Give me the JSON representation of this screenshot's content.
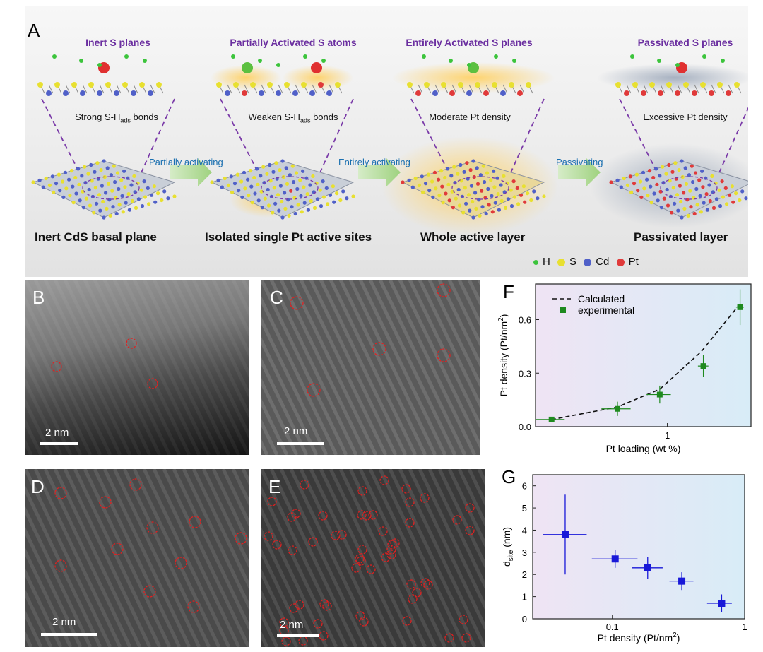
{
  "panel_a": {
    "label": "A",
    "stages": [
      {
        "title": "Inert S planes",
        "bond": "Strong S-H",
        "bond_sub": "ads",
        "bond_tail": " bonds",
        "name": "Inert CdS basal plane"
      },
      {
        "title": "Partially Activated S atoms",
        "bond": "Weaken S-H",
        "bond_sub": "ads",
        "bond_tail": " bonds",
        "name": "Isolated single Pt active sites"
      },
      {
        "title": "Entirely Activated S planes",
        "bond": "Moderate Pt density",
        "bond_sub": "",
        "bond_tail": "",
        "name": "Whole active layer"
      },
      {
        "title": "Passivated S planes",
        "bond": "Excessive Pt density",
        "bond_sub": "",
        "bond_tail": "",
        "name": "Passivated layer"
      }
    ],
    "arrows": [
      "Partially activating",
      "Entirely activating",
      "Passivating"
    ],
    "legend": [
      {
        "label": "H",
        "color": "#3cc43c"
      },
      {
        "label": "S",
        "color": "#e8e030"
      },
      {
        "label": "Cd",
        "color": "#5060c8"
      },
      {
        "label": "Pt",
        "color": "#e03a3a"
      }
    ]
  },
  "panel_b": {
    "label": "B",
    "scale": "2 nm"
  },
  "panel_c": {
    "label": "C",
    "scale": "2 nm"
  },
  "panel_d": {
    "label": "D",
    "scale": "2 nm"
  },
  "panel_e": {
    "label": "E",
    "scale": "2 nm"
  },
  "chart_data": [
    {
      "id": "F",
      "label": "F",
      "type": "scatter",
      "xlabel": "Pt loading (wt %)",
      "ylabel": "Pt density (Pt/nm",
      "ylabel_sup": "2",
      "ylabel_tail": ")",
      "xscale": "log",
      "xlim": [
        0.16,
        3.2
      ],
      "ylim": [
        0,
        0.8
      ],
      "yticks": [
        "0.0",
        "0.3",
        "0.6"
      ],
      "xticks": [
        "1"
      ],
      "legend_position": "top-left",
      "series": [
        {
          "name": "Calculated",
          "style": "dashed-line",
          "color": "#111111",
          "x": [
            0.2,
            0.5,
            0.9,
            1.6,
            2.7
          ],
          "y": [
            0.04,
            0.11,
            0.21,
            0.42,
            0.68
          ]
        },
        {
          "name": "experimental",
          "style": "square-marker",
          "color": "#1f8a1f",
          "x": [
            0.2,
            0.5,
            0.9,
            1.65,
            2.75
          ],
          "y": [
            0.04,
            0.1,
            0.18,
            0.34,
            0.67
          ],
          "xerr": [
            0.04,
            0.1,
            0.15,
            0.12,
            0.15
          ],
          "yerr": [
            0.01,
            0.04,
            0.05,
            0.06,
            0.1
          ]
        }
      ]
    },
    {
      "id": "G",
      "label": "G",
      "type": "scatter",
      "xlabel": "Pt density (Pt/nm",
      "xlabel_sup": "2",
      "xlabel_tail": ")",
      "ylabel": "d",
      "ylabel_sub": "site",
      "ylabel_tail": " (nm)",
      "xscale": "log",
      "xlim": [
        0.025,
        1
      ],
      "ylim": [
        0,
        6.5
      ],
      "yticks": [
        "0",
        "1",
        "2",
        "3",
        "4",
        "5",
        "6"
      ],
      "xticks": [
        "0.1",
        "1"
      ],
      "series": [
        {
          "name": "",
          "style": "square-marker",
          "color": "#1818d8",
          "x": [
            0.044,
            0.105,
            0.185,
            0.335,
            0.67
          ],
          "y": [
            3.8,
            2.7,
            2.3,
            1.7,
            0.7
          ],
          "xerr_low": [
            0.014,
            0.035,
            0.045,
            0.065,
            0.15
          ],
          "xerr_high": [
            0.02,
            0.05,
            0.055,
            0.075,
            0.13
          ],
          "yerr": [
            1.8,
            0.4,
            0.5,
            0.4,
            0.4
          ]
        }
      ]
    }
  ]
}
